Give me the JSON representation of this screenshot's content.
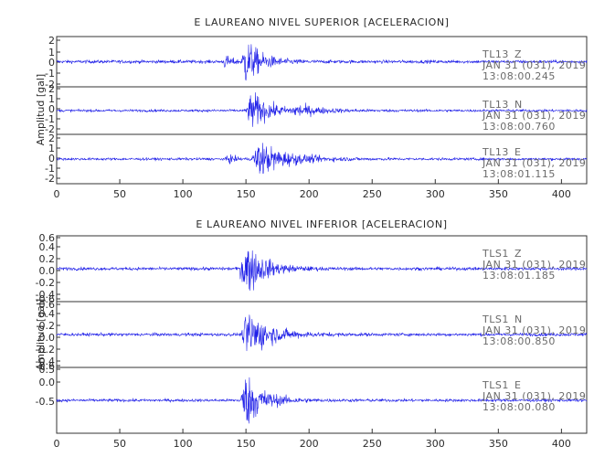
{
  "colors": {
    "trace": "#1f1fe8",
    "axis": "#333333",
    "annotation": "#6a6a6a"
  },
  "chart_data": [
    {
      "type": "line",
      "title": "E LAUREANO NIVEL SUPERIOR [ACELERACION]",
      "ylabel": "Amplitud [gal]",
      "xlim": [
        0,
        420
      ],
      "x_ticks": [
        "0",
        "50",
        "100",
        "150",
        "200",
        "250",
        "300",
        "350",
        "400"
      ],
      "grid": false,
      "series": [
        {
          "name": "TL13 Z",
          "station": "TL13",
          "component": "Z",
          "date": "JAN 31 (031), 2019",
          "time": "13:08:00.245",
          "ylim": [
            -2.2,
            2.2
          ],
          "y_ticks": [
            "2",
            "1",
            "0",
            "-1",
            "-2"
          ],
          "noise": 0.16,
          "events": [
            {
              "x": 150,
              "peak": 2.2,
              "rise": 4,
              "decay": 12
            },
            {
              "x": 133,
              "peak": 0.6,
              "rise": 1,
              "decay": 6
            }
          ]
        },
        {
          "name": "TL13 N",
          "station": "TL13",
          "component": "N",
          "date": "JAN 31 (031), 2019",
          "time": "13:08:00.760",
          "ylim": [
            -2.2,
            2.2
          ],
          "y_ticks": [
            "2",
            "1",
            "0",
            "-1",
            "-2"
          ],
          "noise": 0.13,
          "events": [
            {
              "x": 155,
              "peak": 1.9,
              "rise": 6,
              "decay": 14
            },
            {
              "x": 190,
              "peak": 0.5,
              "rise": 5,
              "decay": 20
            }
          ]
        },
        {
          "name": "TL13 E",
          "station": "TL13",
          "component": "E",
          "date": "JAN 31 (031), 2019",
          "time": "13:08:01.115",
          "ylim": [
            -2.2,
            2.2
          ],
          "y_ticks": [
            "2",
            "1",
            "0",
            "-1",
            "-2"
          ],
          "noise": 0.13,
          "events": [
            {
              "x": 160,
              "peak": 1.7,
              "rise": 6,
              "decay": 22
            },
            {
              "x": 135,
              "peak": 0.5,
              "rise": 1,
              "decay": 5
            }
          ]
        }
      ]
    },
    {
      "type": "line",
      "title": "E LAUREANO NIVEL INFERIOR [ACELERACION]",
      "ylabel": "Amplitud [gal]",
      "xlim": [
        0,
        420
      ],
      "x_ticks": [
        "0",
        "50",
        "100",
        "150",
        "200",
        "250",
        "300",
        "350",
        "400"
      ],
      "grid": false,
      "series": [
        {
          "name": "TLS1 Z",
          "station": "TLS1",
          "component": "Z",
          "date": "JAN 31 (031), 2019",
          "time": "13:08:01.185",
          "ylim": [
            -0.65,
            0.65
          ],
          "y_ticks": [
            "0.6",
            "0.4",
            "0.2",
            "0.0",
            "-0.2",
            "-0.4",
            "-0.6"
          ],
          "noise": 0.035,
          "events": [
            {
              "x": 150,
              "peak": 0.6,
              "rise": 6,
              "decay": 14
            }
          ]
        },
        {
          "name": "TLS1 N",
          "station": "TLS1",
          "component": "N",
          "date": "JAN 31 (031), 2019",
          "time": "13:08:00.850",
          "ylim": [
            -0.65,
            0.65
          ],
          "y_ticks": [
            "0.6",
            "0.4",
            "0.2",
            "0.0",
            "-0.2",
            "-0.4",
            "-0.6"
          ],
          "noise": 0.035,
          "events": [
            {
              "x": 152,
              "peak": 0.55,
              "rise": 6,
              "decay": 16
            }
          ]
        },
        {
          "name": "TLS1 E",
          "station": "TLS1",
          "component": "E",
          "date": "JAN 31 (031), 2019",
          "time": "13:08:00.080",
          "ylim": [
            -0.8,
            0.8
          ],
          "y_ticks": [
            "0.5",
            "0.0",
            "-0.5"
          ],
          "noise": 0.04,
          "events": [
            {
              "x": 150,
              "peak": 0.72,
              "rise": 5,
              "decay": 14
            }
          ]
        }
      ]
    }
  ]
}
